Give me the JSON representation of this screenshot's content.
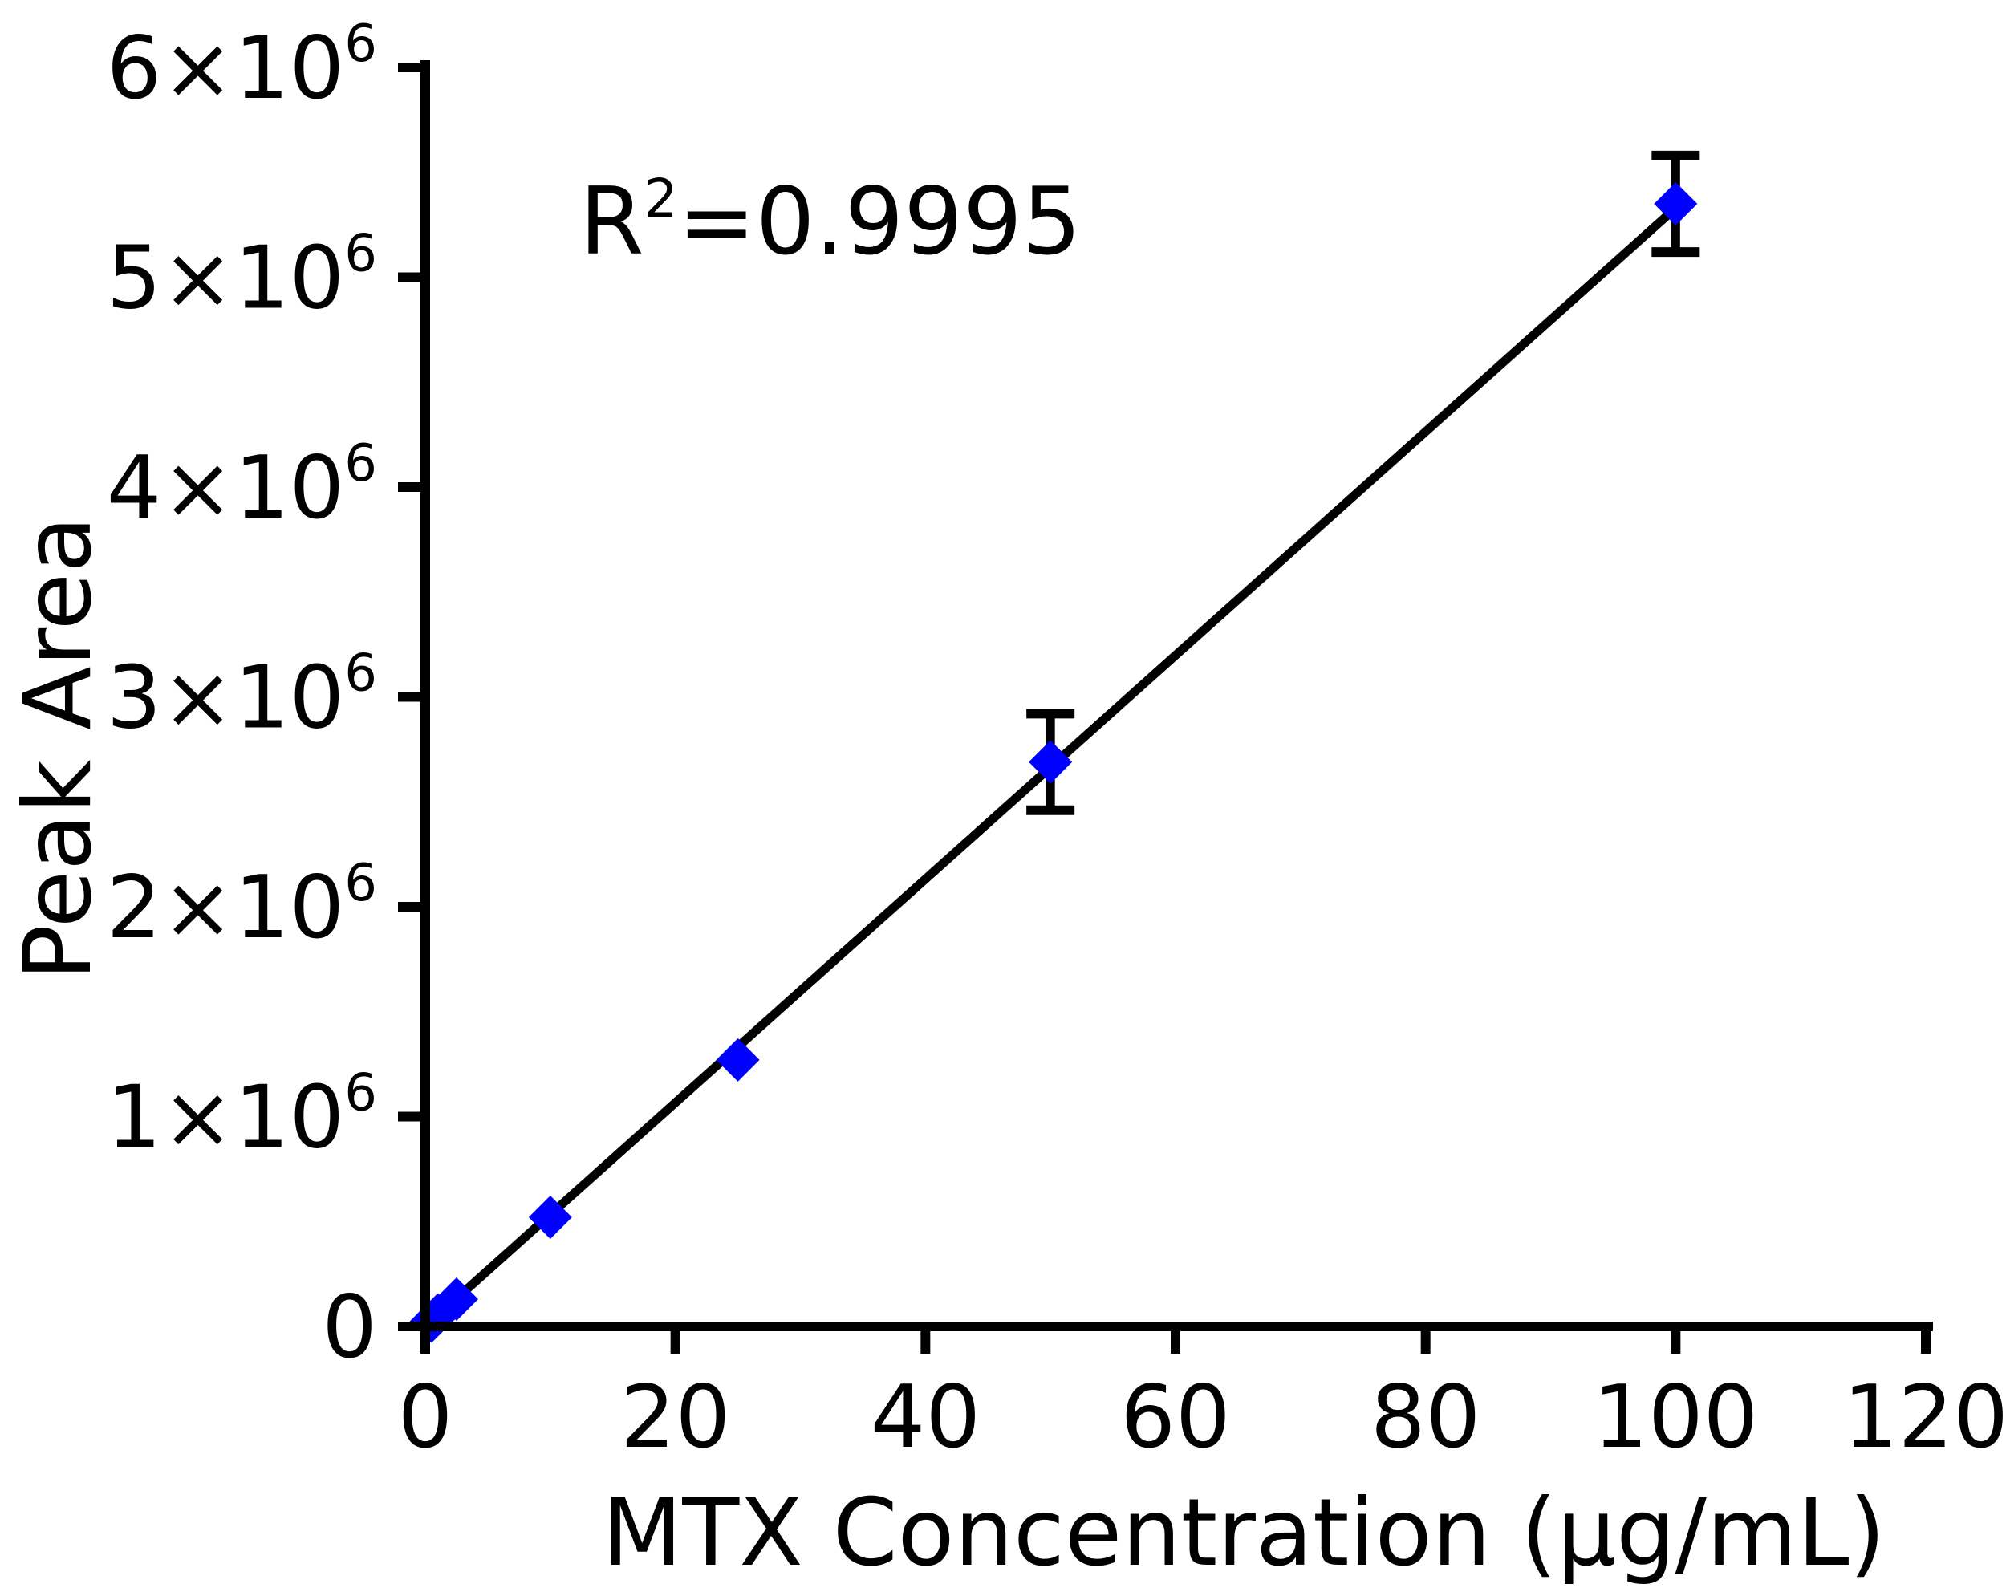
{
  "chart_data": {
    "type": "scatter",
    "title": "",
    "xlabel": "MTX Concentration (µg/mL)",
    "ylabel": "Peak Area",
    "xlim": [
      0,
      120
    ],
    "ylim": [
      0,
      6000000
    ],
    "xticks": [
      0,
      20,
      40,
      60,
      80,
      100,
      120
    ],
    "xtick_labels": [
      "0",
      "20",
      "40",
      "60",
      "80",
      "100",
      "120"
    ],
    "yticks": [
      0,
      1000000,
      2000000,
      3000000,
      4000000,
      5000000,
      6000000
    ],
    "ytick_labels": [
      {
        "base": "0",
        "exp": ""
      },
      {
        "base": "1×10",
        "exp": "6"
      },
      {
        "base": "2×10",
        "exp": "6"
      },
      {
        "base": "3×10",
        "exp": "6"
      },
      {
        "base": "4×10",
        "exp": "6"
      },
      {
        "base": "5×10",
        "exp": "6"
      },
      {
        "base": "6×10",
        "exp": "6"
      }
    ],
    "grid": false,
    "legend": "none",
    "annotation": {
      "base": "R",
      "sup": "2",
      "rest": "=0.9995"
    },
    "series": [
      {
        "marker": "diamond",
        "color": "#0000ff",
        "x": [
          0.5,
          1,
          2.5,
          10,
          25,
          50,
          100
        ],
        "y": [
          25000,
          55000,
          130000,
          520000,
          1270000,
          2690000,
          5350000
        ],
        "yerr": [
          0,
          0,
          0,
          0,
          0,
          230000,
          230000
        ]
      }
    ],
    "fit_line": {
      "color": "#000000",
      "x": [
        0,
        100
      ],
      "y": [
        0,
        5330000
      ]
    }
  }
}
